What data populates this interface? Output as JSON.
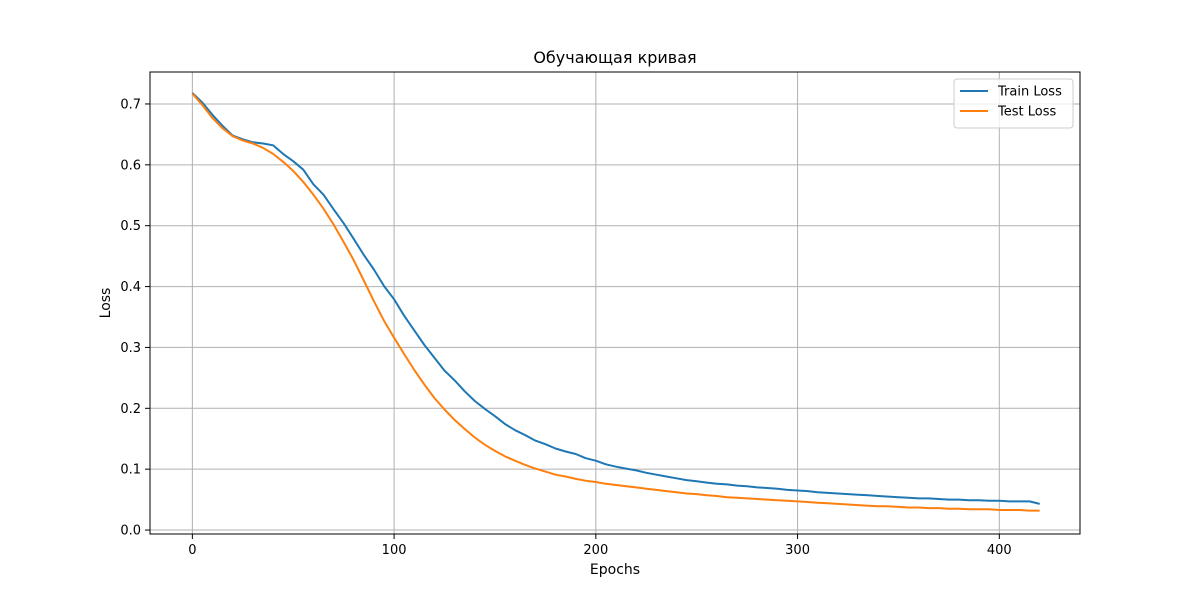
{
  "chart_data": {
    "type": "line",
    "title": "Обучающая кривая",
    "xlabel": "Epochs",
    "ylabel": "Loss",
    "xlim": [
      -21,
      440
    ],
    "ylim": [
      -0.0065,
      0.7525
    ],
    "xticks": [
      0,
      100,
      200,
      300,
      400
    ],
    "yticks": [
      0.0,
      0.1,
      0.2,
      0.3,
      0.4,
      0.5,
      0.6,
      0.7
    ],
    "ytick_labels": [
      "0.0",
      "0.1",
      "0.2",
      "0.3",
      "0.4",
      "0.5",
      "0.6",
      "0.7"
    ],
    "grid": true,
    "legend_position": "top-right",
    "series": [
      {
        "name": "Train Loss",
        "color": "#1f77b4",
        "x": [
          0,
          5,
          10,
          15,
          20,
          25,
          30,
          35,
          40,
          45,
          50,
          55,
          60,
          65,
          70,
          75,
          80,
          85,
          90,
          95,
          100,
          105,
          110,
          115,
          120,
          125,
          130,
          135,
          140,
          145,
          150,
          155,
          160,
          165,
          170,
          175,
          180,
          185,
          190,
          195,
          200,
          205,
          210,
          215,
          220,
          225,
          230,
          235,
          240,
          245,
          250,
          255,
          260,
          265,
          270,
          275,
          280,
          285,
          290,
          295,
          300,
          305,
          310,
          315,
          320,
          325,
          330,
          335,
          340,
          345,
          350,
          355,
          360,
          365,
          370,
          375,
          380,
          385,
          390,
          395,
          400,
          405,
          410,
          415,
          420
        ],
        "values": [
          0.718,
          0.702,
          0.682,
          0.664,
          0.648,
          0.642,
          0.637,
          0.635,
          0.632,
          0.618,
          0.606,
          0.592,
          0.568,
          0.551,
          0.527,
          0.504,
          0.478,
          0.452,
          0.428,
          0.401,
          0.379,
          0.352,
          0.328,
          0.304,
          0.283,
          0.262,
          0.246,
          0.228,
          0.212,
          0.199,
          0.187,
          0.174,
          0.164,
          0.156,
          0.147,
          0.141,
          0.134,
          0.129,
          0.125,
          0.118,
          0.114,
          0.108,
          0.104,
          0.101,
          0.098,
          0.094,
          0.091,
          0.088,
          0.085,
          0.082,
          0.08,
          0.078,
          0.076,
          0.075,
          0.073,
          0.072,
          0.07,
          0.069,
          0.068,
          0.066,
          0.065,
          0.064,
          0.062,
          0.061,
          0.06,
          0.059,
          0.058,
          0.057,
          0.056,
          0.055,
          0.054,
          0.053,
          0.052,
          0.052,
          0.051,
          0.05,
          0.05,
          0.049,
          0.049,
          0.048,
          0.048,
          0.047,
          0.047,
          0.047,
          0.043
        ]
      },
      {
        "name": "Test Loss",
        "color": "#ff7f0e",
        "x": [
          0,
          5,
          10,
          15,
          20,
          25,
          30,
          35,
          40,
          45,
          50,
          55,
          60,
          65,
          70,
          75,
          80,
          85,
          90,
          95,
          100,
          105,
          110,
          115,
          120,
          125,
          130,
          135,
          140,
          145,
          150,
          155,
          160,
          165,
          170,
          175,
          180,
          185,
          190,
          195,
          200,
          205,
          210,
          215,
          220,
          225,
          230,
          235,
          240,
          245,
          250,
          255,
          260,
          265,
          270,
          275,
          280,
          285,
          290,
          295,
          300,
          305,
          310,
          315,
          320,
          325,
          330,
          335,
          340,
          345,
          350,
          355,
          360,
          365,
          370,
          375,
          380,
          385,
          390,
          395,
          400,
          405,
          410,
          415,
          420
        ],
        "values": [
          0.717,
          0.698,
          0.677,
          0.66,
          0.647,
          0.64,
          0.635,
          0.628,
          0.618,
          0.605,
          0.59,
          0.572,
          0.551,
          0.528,
          0.502,
          0.473,
          0.443,
          0.41,
          0.376,
          0.344,
          0.316,
          0.289,
          0.263,
          0.239,
          0.217,
          0.198,
          0.181,
          0.166,
          0.152,
          0.14,
          0.13,
          0.121,
          0.114,
          0.107,
          0.101,
          0.096,
          0.091,
          0.088,
          0.084,
          0.081,
          0.079,
          0.076,
          0.074,
          0.072,
          0.07,
          0.068,
          0.066,
          0.064,
          0.062,
          0.06,
          0.059,
          0.057,
          0.056,
          0.054,
          0.053,
          0.052,
          0.051,
          0.05,
          0.049,
          0.048,
          0.047,
          0.046,
          0.045,
          0.044,
          0.043,
          0.042,
          0.041,
          0.04,
          0.039,
          0.039,
          0.038,
          0.037,
          0.037,
          0.036,
          0.036,
          0.035,
          0.035,
          0.034,
          0.034,
          0.034,
          0.033,
          0.033,
          0.033,
          0.032,
          0.032
        ]
      }
    ]
  }
}
